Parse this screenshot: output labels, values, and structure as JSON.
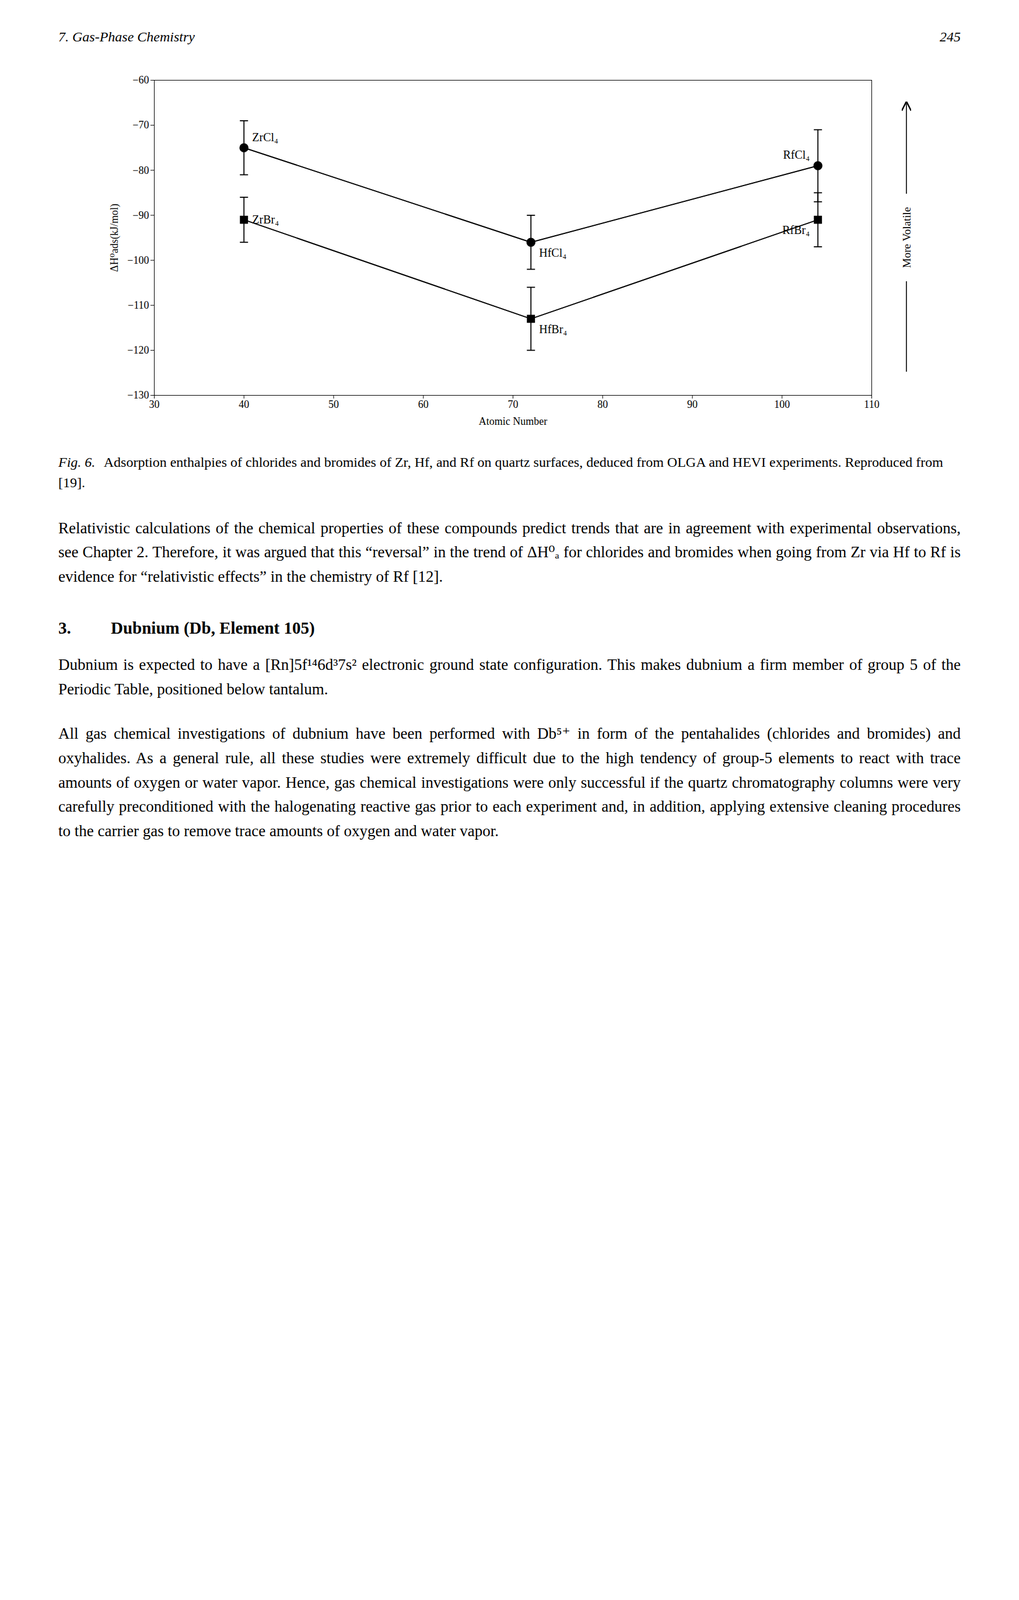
{
  "chart_data": {
    "type": "line",
    "xlabel": "Atomic Number",
    "ylabel": "ΔH⁰ads(kJ/mol)",
    "xlim": [
      30,
      110
    ],
    "ylim": [
      -130,
      -60
    ],
    "xticks": [
      30,
      40,
      50,
      60,
      70,
      80,
      90,
      100,
      110
    ],
    "yticks": [
      -130,
      -120,
      -110,
      -100,
      -90,
      -80,
      -70,
      -60
    ],
    "grid": false,
    "x": [
      40,
      72,
      104
    ],
    "series": [
      {
        "marker": "circle",
        "values": [
          -75,
          -96,
          -79
        ],
        "yerr": [
          6,
          6,
          8
        ],
        "labels": [
          "ZrCl₄",
          "HfCl₄",
          "RfCl₄"
        ]
      },
      {
        "marker": "square",
        "values": [
          -91,
          -113,
          -91
        ],
        "yerr": [
          5,
          7,
          6
        ],
        "labels": [
          "ZrBr₄",
          "HfBr₄",
          "RfBr₄"
        ]
      }
    ],
    "annotations": [
      "More Volatile"
    ]
  },
  "page": {
    "header_left": "7. Gas-Phase Chemistry",
    "header_right": "245",
    "caption_label": "Fig. 6.",
    "caption": "Adsorption enthalpies of chlorides and bromides of Zr, Hf, and Rf on quartz surfaces, deduced from OLGA and HEVI experiments.  Reproduced from [19].",
    "paragraphs_before": [
      "Relativistic calculations of the chemical properties of these compounds predict trends that are in agreement with experimental observations, see Chapter 2.  Therefore, it was argued that this “reversal” in the trend of ΔH⁰ₐ for chlorides and bromides when going from Zr via Hf to Rf is evidence for “relativistic effects” in the chemistry of Rf [12]."
    ],
    "section_number": "3.",
    "section_title": "Dubnium (Db, Element 105)",
    "paragraphs_after": [
      "Dubnium is expected to have a [Rn]5f¹⁴6d³7s² electronic ground state configuration.  This makes dubnium a firm member of group 5 of the Periodic Table, positioned below tantalum.",
      "All gas chemical investigations of dubnium have been performed with Db⁵⁺ in form of the pentahalides (chlorides and bromides) and oxyhalides.  As a general rule, all these studies were extremely difficult due to the high tendency of group-5 elements to react with trace amounts of oxygen or water vapor.  Hence, gas chemical investigations were only successful if the quartz chromatography columns were very carefully preconditioned with the halogenating reactive gas prior to each experiment and, in addition, applying extensive cleaning procedures to the carrier gas to remove trace amounts of oxygen and water vapor."
    ]
  }
}
